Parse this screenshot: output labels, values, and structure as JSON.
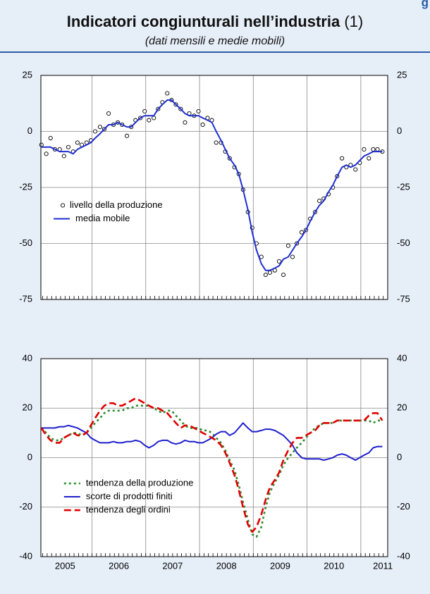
{
  "header": {
    "corner": "g",
    "title": "Indicatori congiunturali nell’industria",
    "title_note": "(1)",
    "subtitle": "(dati mensili e medie mobili)"
  },
  "chart_data": [
    {
      "type": "line",
      "x": [
        2005.06,
        2005.15,
        2005.23,
        2005.31,
        2005.4,
        2005.48,
        2005.56,
        2005.65,
        2005.73,
        2005.81,
        2005.9,
        2005.98,
        2006.06,
        2006.15,
        2006.23,
        2006.31,
        2006.4,
        2006.48,
        2006.56,
        2006.65,
        2006.73,
        2006.81,
        2006.9,
        2006.98,
        2007.06,
        2007.15,
        2007.23,
        2007.31,
        2007.4,
        2007.48,
        2007.56,
        2007.65,
        2007.73,
        2007.81,
        2007.9,
        2007.98,
        2008.06,
        2008.15,
        2008.23,
        2008.31,
        2008.4,
        2008.48,
        2008.56,
        2008.65,
        2008.73,
        2008.81,
        2008.9,
        2008.98,
        2009.06,
        2009.15,
        2009.23,
        2009.31,
        2009.4,
        2009.48,
        2009.56,
        2009.65,
        2009.73,
        2009.81,
        2009.9,
        2009.98,
        2010.06,
        2010.15,
        2010.23,
        2010.31,
        2010.4,
        2010.48,
        2010.56,
        2010.65,
        2010.73,
        2010.81,
        2010.9,
        2010.98,
        2011.06,
        2011.15,
        2011.23,
        2011.31,
        2011.4
      ],
      "series": [
        {
          "name": "livello della produzione",
          "color": "#000000",
          "marker": "circle",
          "values": [
            -6,
            -10,
            -3,
            -8,
            -8,
            -11,
            -7,
            -9,
            -5,
            -6,
            -5,
            -4,
            0,
            2,
            1,
            8,
            3,
            4,
            3,
            -2,
            2,
            5,
            6,
            9,
            5,
            6,
            10,
            13,
            17,
            14,
            12,
            10,
            4,
            8,
            7,
            9,
            3,
            6,
            5,
            -5,
            -5,
            -9,
            -12,
            -16,
            -19,
            -26,
            -36,
            -43,
            -50,
            -56,
            -64,
            -63,
            -62,
            -58,
            -64,
            -51,
            -56,
            -50,
            -45,
            -44,
            -39,
            -36,
            -31,
            -30,
            -28,
            -25,
            -20,
            -12,
            -16,
            -15,
            -17,
            -14,
            -8,
            -12,
            -8,
            -8,
            -9
          ]
        },
        {
          "name": "media mobile",
          "color": "#1f2fd0",
          "dash": "solid",
          "values": [
            -7,
            -7,
            -7,
            -8,
            -9,
            -9,
            -9,
            -10,
            -8,
            -7,
            -6,
            -5,
            -3,
            -1,
            1,
            3,
            3,
            4,
            3,
            2,
            2,
            4,
            6,
            7,
            7,
            7,
            10,
            12,
            14,
            14,
            12,
            10,
            8,
            7,
            7,
            7,
            6,
            5,
            4,
            0,
            -4,
            -8,
            -12,
            -15,
            -19,
            -26,
            -35,
            -45,
            -53,
            -59,
            -62,
            -62,
            -61,
            -60,
            -57,
            -56,
            -53,
            -50,
            -47,
            -44,
            -40,
            -36,
            -33,
            -31,
            -27,
            -24,
            -20,
            -16,
            -15,
            -16,
            -15,
            -13,
            -11,
            -10,
            -9,
            -9,
            -9
          ]
        }
      ],
      "xlim": [
        2005.05,
        2011.5
      ],
      "xgrid": [
        2006,
        2007,
        2008,
        2009,
        2010,
        2011
      ],
      "ylim": [
        -75,
        25
      ],
      "yticks": [
        -75,
        -50,
        -25,
        0,
        25
      ],
      "grid": true,
      "mirror_y_labels": true,
      "legend": "center left"
    },
    {
      "type": "line",
      "x": [
        2005.06,
        2005.15,
        2005.23,
        2005.31,
        2005.4,
        2005.48,
        2005.56,
        2005.65,
        2005.73,
        2005.81,
        2005.9,
        2005.98,
        2006.06,
        2006.15,
        2006.23,
        2006.31,
        2006.4,
        2006.48,
        2006.56,
        2006.65,
        2006.73,
        2006.81,
        2006.9,
        2006.98,
        2007.06,
        2007.15,
        2007.23,
        2007.31,
        2007.4,
        2007.48,
        2007.56,
        2007.65,
        2007.73,
        2007.81,
        2007.9,
        2007.98,
        2008.06,
        2008.15,
        2008.23,
        2008.31,
        2008.4,
        2008.48,
        2008.56,
        2008.65,
        2008.73,
        2008.81,
        2008.9,
        2008.98,
        2009.06,
        2009.15,
        2009.23,
        2009.31,
        2009.4,
        2009.48,
        2009.56,
        2009.65,
        2009.73,
        2009.81,
        2009.9,
        2009.98,
        2010.06,
        2010.15,
        2010.23,
        2010.31,
        2010.4,
        2010.48,
        2010.56,
        2010.65,
        2010.73,
        2010.81,
        2010.9,
        2010.98,
        2011.06,
        2011.15,
        2011.23,
        2011.31,
        2011.4
      ],
      "series": [
        {
          "name": "tendenza della produzione",
          "color": "#2e8b2e",
          "dash": "dotted",
          "values": [
            12,
            10,
            8,
            7,
            7,
            8,
            9,
            10,
            10,
            9,
            10,
            12,
            14,
            16,
            18,
            19,
            19,
            19,
            19,
            20,
            20,
            21,
            21,
            21,
            21,
            20,
            19,
            18,
            19,
            19,
            17,
            15,
            13,
            12,
            12,
            12,
            11,
            11,
            10,
            8,
            6,
            3,
            -1,
            -5,
            -11,
            -18,
            -25,
            -31,
            -32,
            -28,
            -20,
            -14,
            -10,
            -7,
            -3,
            0,
            2,
            4,
            6,
            8,
            10,
            12,
            13,
            14,
            14,
            14,
            15,
            15,
            15,
            15,
            15,
            15,
            15,
            15,
            14,
            15,
            15
          ]
        },
        {
          "name": "scorte di prodotti finiti",
          "color": "#1f1fcc",
          "dash": "solid",
          "values": [
            12,
            12,
            12,
            12,
            12.5,
            12.5,
            13,
            12.5,
            12,
            11,
            10,
            8,
            7,
            6,
            6,
            6,
            6.5,
            6,
            6,
            6.5,
            6.5,
            7,
            6.5,
            5,
            4,
            5,
            6.5,
            7,
            7,
            6,
            5.5,
            6,
            7,
            6.5,
            6.5,
            6,
            6,
            7,
            8,
            9.5,
            10.5,
            10.5,
            9,
            10,
            12,
            14,
            12,
            10.5,
            10.5,
            11,
            11.5,
            11.5,
            11,
            10,
            9,
            7,
            5,
            2,
            0,
            -0.5,
            -0.5,
            -0.5,
            -0.5,
            -1,
            -0.5,
            0,
            1,
            1.5,
            1,
            0,
            -1,
            0,
            1,
            2,
            4,
            4.5,
            4.5
          ]
        },
        {
          "name": "tendenza degli ordini",
          "color": "#e00000",
          "dash": "dashed",
          "values": [
            12,
            9,
            7,
            6,
            6,
            8,
            9,
            10,
            9,
            9,
            10,
            13,
            16,
            19,
            21,
            22,
            22,
            21,
            21,
            22,
            23,
            24,
            23,
            22,
            21,
            20,
            20,
            19,
            18,
            16,
            14,
            12,
            13,
            13,
            12,
            11,
            10,
            9,
            8,
            7,
            5,
            2,
            -2,
            -7,
            -13,
            -20,
            -27,
            -30,
            -28,
            -23,
            -17,
            -12,
            -9,
            -6,
            -1,
            3,
            6,
            8,
            8,
            9,
            10,
            11,
            13,
            14,
            14,
            14,
            15,
            15,
            15,
            15,
            15,
            15,
            15,
            17,
            18,
            18,
            15
          ]
        }
      ],
      "xlim": [
        2005.05,
        2011.5
      ],
      "xgrid": [
        2006,
        2007,
        2008,
        2009,
        2010,
        2011
      ],
      "xticks": [
        {
          "value": 2005.5,
          "label": "2005"
        },
        {
          "value": 2006.5,
          "label": "2006"
        },
        {
          "value": 2007.5,
          "label": "2007"
        },
        {
          "value": 2008.5,
          "label": "2008"
        },
        {
          "value": 2009.5,
          "label": "2009"
        },
        {
          "value": 2010.5,
          "label": "2010"
        },
        {
          "value": 2011.41,
          "label": "2011"
        }
      ],
      "ylim": [
        -40,
        40
      ],
      "yticks": [
        -40,
        -20,
        0,
        20,
        40
      ],
      "grid": true,
      "mirror_y_labels": true,
      "legend": "lower left"
    }
  ]
}
